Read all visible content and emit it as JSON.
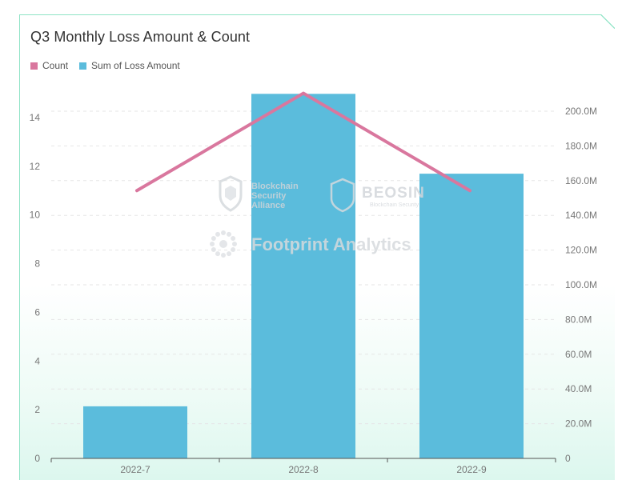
{
  "chart_data": {
    "type": "bar-line-combo",
    "title": "Q3 Monthly Loss Amount & Count",
    "categories": [
      "2022-7",
      "2022-8",
      "2022-9"
    ],
    "series": [
      {
        "name": "Count",
        "type": "line",
        "axis": "left",
        "values": [
          11,
          15,
          11
        ],
        "color": "#d9779e"
      },
      {
        "name": "Sum of Loss Amount",
        "type": "bar",
        "axis": "right",
        "values": [
          30000000,
          210000000,
          164000000
        ],
        "color": "#5bbcdc"
      }
    ],
    "left_axis": {
      "min": 0,
      "max": 15,
      "ticks": [
        0,
        2,
        4,
        6,
        8,
        10,
        12,
        14
      ],
      "tick_labels": [
        "0",
        "2",
        "4",
        "6",
        "8",
        "10",
        "12",
        "14"
      ]
    },
    "right_axis": {
      "min": 0,
      "max": 210000000,
      "ticks": [
        0,
        20000000,
        40000000,
        60000000,
        80000000,
        100000000,
        120000000,
        140000000,
        160000000,
        180000000,
        200000000
      ],
      "tick_labels": [
        "0",
        "20.0M",
        "40.0M",
        "60.0M",
        "80.0M",
        "100.0M",
        "120.0M",
        "140.0M",
        "160.0M",
        "180.0M",
        "200.0M"
      ]
    },
    "grid": true,
    "legend_position": "top-left"
  },
  "watermarks": {
    "bsa": [
      "Blockchain",
      "Security",
      "Alliance"
    ],
    "beosin": "BEOSIN",
    "beosin_sub": "Blockchain Security",
    "footprint": "Footprint Analytics"
  },
  "icons": [
    "bsa-shield-logo",
    "beosin-logo",
    "footprint-logo"
  ]
}
